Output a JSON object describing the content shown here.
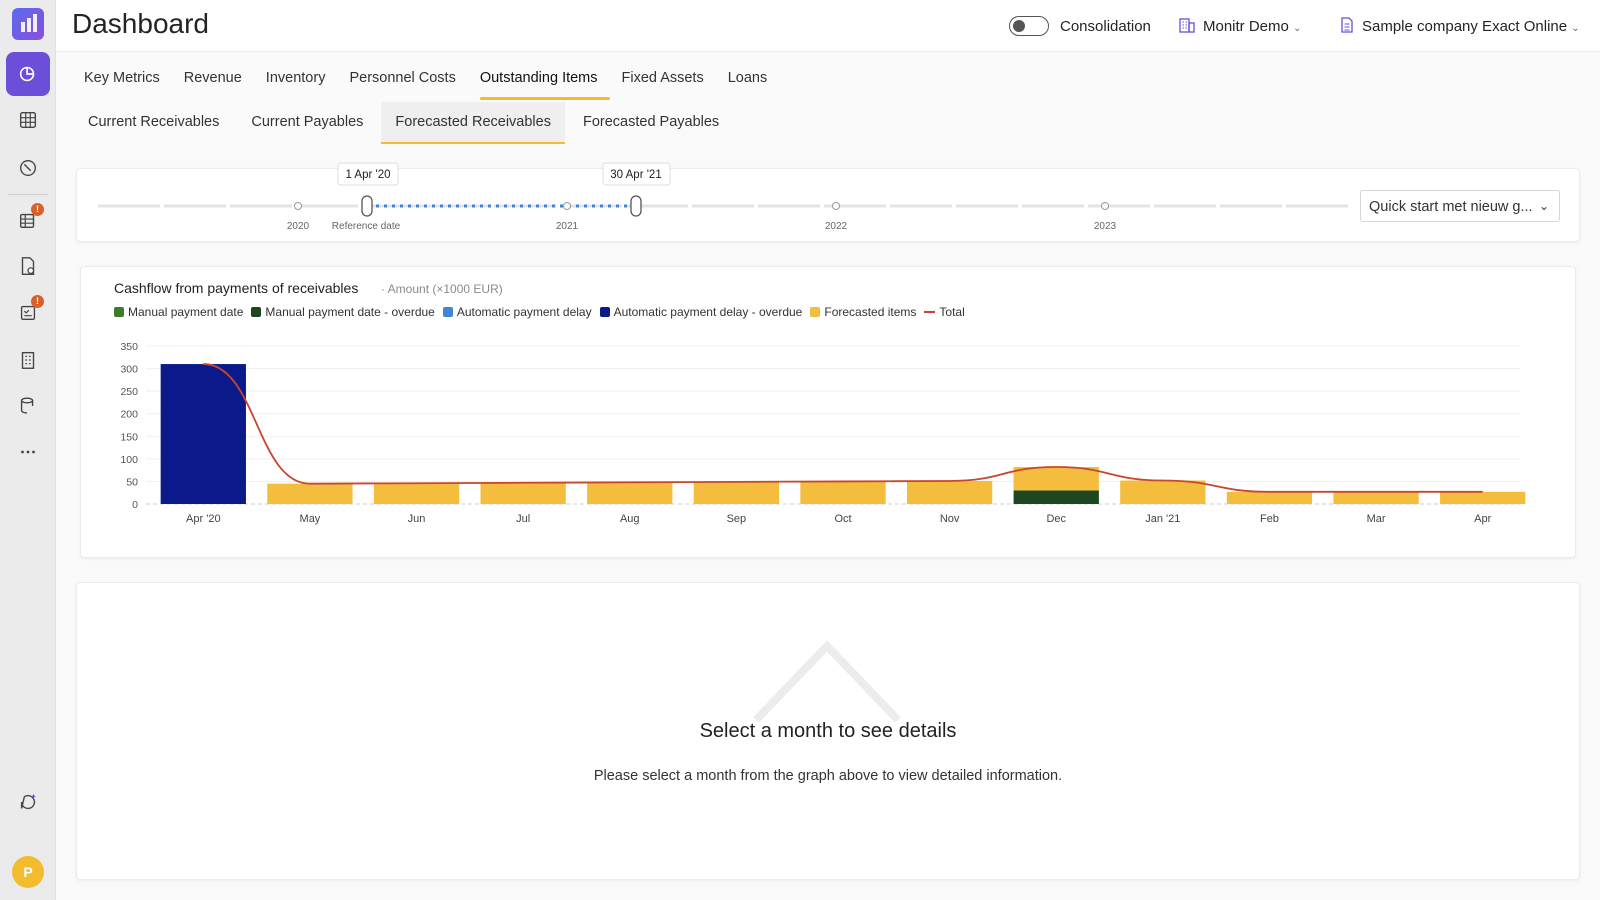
{
  "header": {
    "title": "Dashboard",
    "consolidation_label": "Consolidation",
    "org_label": "Monitr Demo",
    "company_label": "Sample company Exact Online"
  },
  "main_tabs": [
    {
      "label": "Key Metrics"
    },
    {
      "label": "Revenue"
    },
    {
      "label": "Inventory"
    },
    {
      "label": "Personnel Costs"
    },
    {
      "label": "Outstanding Items",
      "active": true
    },
    {
      "label": "Fixed Assets"
    },
    {
      "label": "Loans"
    }
  ],
  "sub_tabs": [
    {
      "label": "Current Receivables"
    },
    {
      "label": "Current Payables"
    },
    {
      "label": "Forecasted Receivables",
      "active": true
    },
    {
      "label": "Forecasted Payables"
    }
  ],
  "timeline": {
    "start_label": "1 Apr '20",
    "end_label": "30 Apr '21",
    "reference_label": "Reference date",
    "years": [
      "2020",
      "2021",
      "2022",
      "2023"
    ],
    "dropdown_value": "Quick start met nieuw g..."
  },
  "chart_data": {
    "type": "bar",
    "title": "Cashflow from payments of receivables",
    "subtitle": "Amount (×1000 EUR)",
    "categories": [
      "Apr '20",
      "May",
      "Jun",
      "Jul",
      "Aug",
      "Sep",
      "Oct",
      "Nov",
      "Dec",
      "Jan '21",
      "Feb",
      "Mar",
      "Apr"
    ],
    "ylim": [
      0,
      350
    ],
    "yticks": [
      0,
      50,
      100,
      150,
      200,
      250,
      300,
      350
    ],
    "stacked": true,
    "series": [
      {
        "name": "Manual payment date",
        "color": "#3a7d2c",
        "values": [
          0,
          0,
          0,
          0,
          0,
          0,
          0,
          0,
          0,
          0,
          0,
          0,
          0
        ]
      },
      {
        "name": "Manual payment date - overdue",
        "color": "#1e4620",
        "values": [
          0,
          0,
          0,
          0,
          0,
          0,
          0,
          0,
          30,
          0,
          0,
          0,
          0
        ]
      },
      {
        "name": "Automatic payment delay",
        "color": "#3f84d8",
        "values": [
          0,
          0,
          0,
          0,
          0,
          0,
          0,
          0,
          0,
          0,
          0,
          0,
          0
        ]
      },
      {
        "name": "Automatic payment delay - overdue",
        "color": "#0a1a8a",
        "values": [
          310,
          0,
          0,
          0,
          0,
          0,
          0,
          0,
          0,
          0,
          0,
          0,
          0
        ]
      },
      {
        "name": "Forecasted items",
        "color": "#f5bd3d",
        "values": [
          0,
          45,
          46,
          47,
          48,
          49,
          50,
          51,
          52,
          52,
          27,
          27,
          27
        ]
      }
    ],
    "total": {
      "name": "Total",
      "color": "#c8462c",
      "values": [
        310,
        45,
        46,
        47,
        48,
        49,
        50,
        51,
        82,
        52,
        27,
        27,
        27
      ]
    }
  },
  "details": {
    "title": "Select a month to see details",
    "text": "Please select a month from the graph above to view detailed information."
  },
  "user": {
    "initial": "P"
  },
  "colors": {
    "accent": "#f2bc2e",
    "brand": "#6b4fd8",
    "notify": "#d8602a"
  }
}
